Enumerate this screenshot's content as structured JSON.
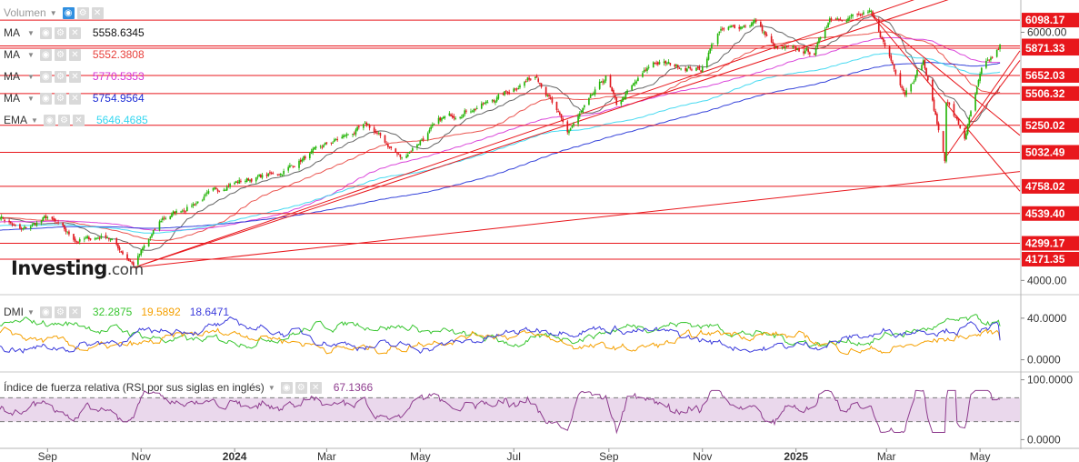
{
  "chart_data": [
    {
      "type": "candlestick",
      "title": "",
      "x_labels": [
        "Sep",
        "Nov",
        "2024",
        "Mar",
        "May",
        "Jul",
        "Sep",
        "Nov",
        "2025",
        "Mar",
        "May"
      ],
      "ylim": [
        3900,
        6260
      ],
      "price_axis_labels": [
        "6000.00",
        "4000.00"
      ],
      "price_path": [
        [
          "2023-08-01",
          4520
        ],
        [
          "2023-08-15",
          4400
        ],
        [
          "2023-09-01",
          4510
        ],
        [
          "2023-09-20",
          4320
        ],
        [
          "2023-10-10",
          4360
        ],
        [
          "2023-10-27",
          4130
        ],
        [
          "2023-11-15",
          4500
        ],
        [
          "2023-12-01",
          4590
        ],
        [
          "2023-12-28",
          4780
        ],
        [
          "2024-01-31",
          4870
        ],
        [
          "2024-02-29",
          5090
        ],
        [
          "2024-03-28",
          5250
        ],
        [
          "2024-04-19",
          4980
        ],
        [
          "2024-05-15",
          5300
        ],
        [
          "2024-06-14",
          5430
        ],
        [
          "2024-07-16",
          5660
        ],
        [
          "2024-08-05",
          5190
        ],
        [
          "2024-08-30",
          5640
        ],
        [
          "2024-09-06",
          5410
        ],
        [
          "2024-09-30",
          5760
        ],
        [
          "2024-10-31",
          5700
        ],
        [
          "2024-11-11",
          6000
        ],
        [
          "2024-12-06",
          6090
        ],
        [
          "2024-12-18",
          5870
        ],
        [
          "2025-01-13",
          5840
        ],
        [
          "2025-01-23",
          6118
        ],
        [
          "2025-02-19",
          6144
        ],
        [
          "2025-03-13",
          5520
        ],
        [
          "2025-03-25",
          5770
        ],
        [
          "2025-04-08",
          4982
        ],
        [
          "2025-04-09",
          5460
        ],
        [
          "2025-04-21",
          5150
        ],
        [
          "2025-05-02",
          5686
        ],
        [
          "2025-05-12",
          5845
        ],
        [
          "2025-05-14",
          5890
        ]
      ],
      "horizontal_levels": [
        6098.17,
        5889.88,
        5871.33,
        5652.03,
        5506.32,
        5250.02,
        5032.49,
        4758.02,
        4539.4,
        4299.17,
        4171.35
      ],
      "trend_lines": [
        {
          "p1": [
            "2023-10-27",
            4103
          ],
          "p2": [
            "2025-05-14",
            4860
          ]
        },
        {
          "p1": [
            "2023-10-27",
            4103
          ],
          "p2": [
            "2025-02-19",
            6144
          ]
        },
        {
          "p1": [
            "2023-10-27",
            4103
          ],
          "p2": [
            "2025-05-14",
            6400
          ]
        },
        {
          "p1": [
            "2025-02-19",
            6144
          ],
          "p2": [
            "2025-05-14",
            4910
          ]
        },
        {
          "p1": [
            "2025-02-19",
            6144
          ],
          "p2": [
            "2025-05-14",
            5300
          ]
        },
        {
          "p1": [
            "2025-04-08",
            4982
          ],
          "p2": [
            "2025-05-14",
            5620
          ]
        },
        {
          "p1": [
            "2025-04-22",
            5200
          ],
          "p2": [
            "2025-05-14",
            5560
          ]
        }
      ],
      "series": [
        {
          "name": "MA",
          "value": "5558.6345",
          "color": "#555555",
          "period": 20
        },
        {
          "name": "MA",
          "value": "5552.3808",
          "color": "#e8413c",
          "period": 50
        },
        {
          "name": "MA",
          "value": "5770.5353",
          "color": "#d633d6",
          "period": 100
        },
        {
          "name": "MA",
          "value": "5754.9564",
          "color": "#1f2fd6",
          "period": 200
        },
        {
          "name": "EMA",
          "value": "5646.4685",
          "color": "#33d6f0",
          "period": 150
        }
      ],
      "volume_label": "Volumen"
    },
    {
      "type": "line",
      "name": "DMI",
      "values": [
        "32.2875",
        "19.5892",
        "18.6471"
      ],
      "colors": [
        "#39c631",
        "#f5a000",
        "#3c3cdc"
      ],
      "ylim": [
        -10,
        60
      ],
      "axis_labels": [
        "40.0000",
        "0.0000"
      ]
    },
    {
      "type": "line",
      "name": "Índice de fuerza relativa (RSI por sus siglas en inglés)",
      "value": "67.1366",
      "color": "#8e3c8e",
      "ylim": [
        -10,
        110
      ],
      "axis_labels": [
        "100.0000",
        "0.0000"
      ],
      "bands": [
        70,
        30
      ]
    }
  ],
  "logo": {
    "brand": "Investing",
    "domain": ".com"
  },
  "colors": {
    "up": "#26b50a",
    "down": "#e0181e",
    "level": "#e8171c",
    "label_bg": "#e8171c"
  }
}
